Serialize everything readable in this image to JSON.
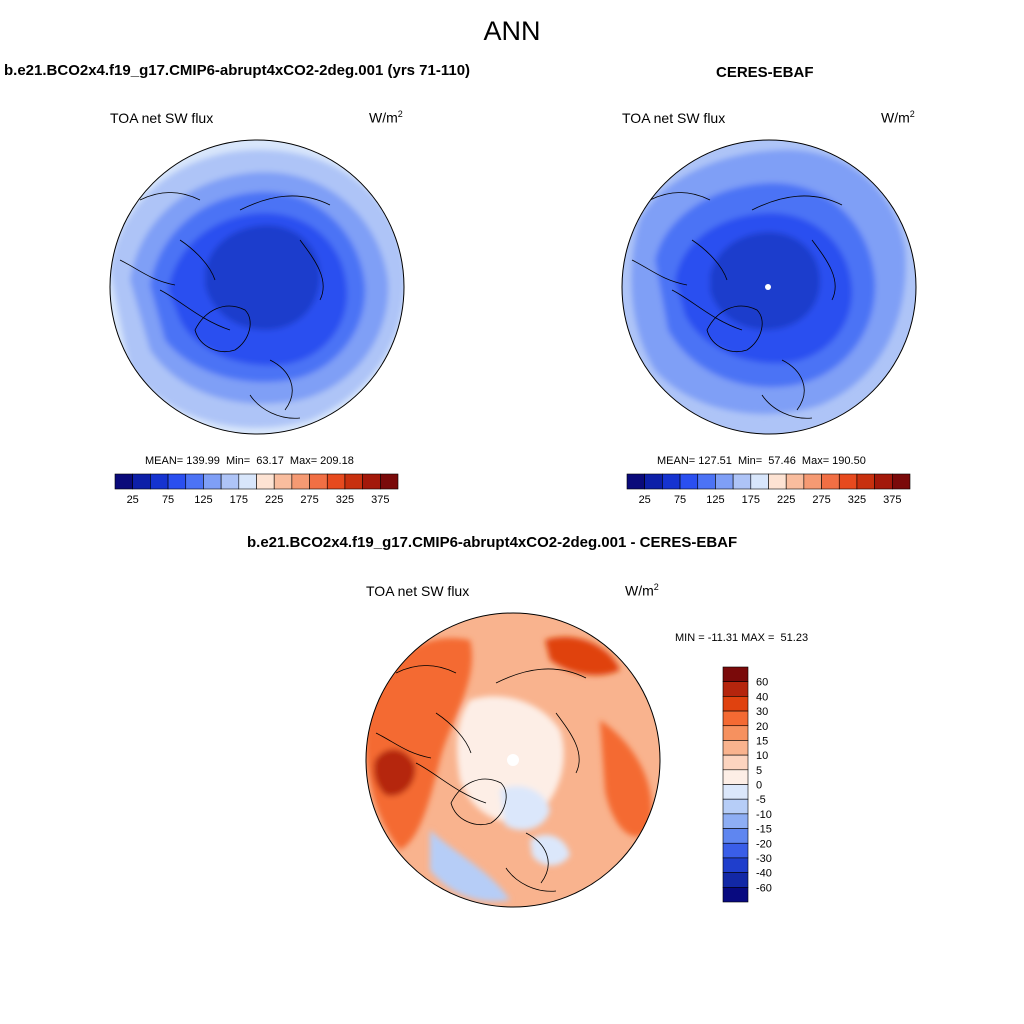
{
  "title": "ANN",
  "panels": {
    "model": {
      "title": "b.e21.BCO2x4.f19_g17.CMIP6-abrupt4xCO2-2deg.001 (yrs 71-110)",
      "variable": "TOA net SW flux",
      "units_base": "W/m",
      "units_exp": "2",
      "stats": "MEAN= 139.99  Min=  63.17  Max= 209.18"
    },
    "obs": {
      "title": "CERES-EBAF",
      "variable": "TOA net SW flux",
      "units_base": "W/m",
      "units_exp": "2",
      "stats": "MEAN= 127.51  Min=  57.46  Max= 190.50"
    },
    "diff": {
      "title": "b.e21.BCO2x4.f19_g17.CMIP6-abrupt4xCO2-2deg.001 - CERES-EBAF",
      "variable": "TOA net SW flux",
      "units_base": "W/m",
      "units_exp": "2",
      "stats": "MIN = -11.31 MAX =  51.23"
    }
  },
  "colorbar_main": {
    "colors": [
      "#0a0a7a",
      "#0d1fa8",
      "#1533d0",
      "#2a4ff0",
      "#4c73f5",
      "#7f9ff6",
      "#aec4f7",
      "#d8e6fb",
      "#fde3d3",
      "#f9bd9e",
      "#f59a73",
      "#f16f44",
      "#e74a1e",
      "#c8300e",
      "#a3180a",
      "#7a0a0a"
    ],
    "tick_labels": [
      "25",
      "75",
      "125",
      "175",
      "225",
      "275",
      "325",
      "375"
    ]
  },
  "colorbar_diff": {
    "colors": [
      "#7a0a0a",
      "#b5250d",
      "#e0420f",
      "#f46a33",
      "#f6915f",
      "#f9b38e",
      "#fcd4bf",
      "#fdeee6",
      "#dbe7fb",
      "#b6cdf7",
      "#8eaef4",
      "#5f86f0",
      "#3a5ee8",
      "#1f3ecc",
      "#1228a6",
      "#080a80"
    ],
    "tick_labels": [
      "60",
      "40",
      "30",
      "20",
      "15",
      "10",
      "5",
      "0",
      "-5",
      "-10",
      "-15",
      "-20",
      "-30",
      "-40",
      "-60"
    ]
  }
}
